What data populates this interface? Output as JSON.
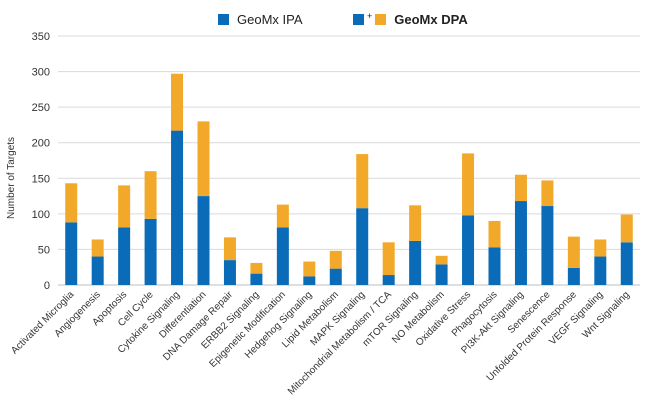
{
  "colors": {
    "ipa": "#0a6cb8",
    "dpa": "#f2a92a",
    "grid": "#d9d9d9",
    "text": "#333333"
  },
  "legend": {
    "ipa_label": "GeoMx IPA",
    "plus": "+",
    "dpa_label": "GeoMx DPA"
  },
  "chart_data": {
    "type": "bar",
    "stacked": true,
    "ylabel": "Number of Targets",
    "xlabel": "",
    "ylim": [
      0,
      350
    ],
    "yticks": [
      0,
      50,
      100,
      150,
      200,
      250,
      300,
      350
    ],
    "grid": true,
    "legend_position": "top-center",
    "categories": [
      "Activated Microglia",
      "Angiogenesis",
      "Apoptosis",
      "Cell Cycle",
      "Cytokine Signaling",
      "Differentiation",
      "DNA Damage Repair",
      "ERBB2 Signaling",
      "Epigenetic Modification",
      "Hedgehog Signaling",
      "Lipid Metabolism",
      "MAPK Signaling",
      "Mitochondrial Metabolism / TCA",
      "mTOR Signaling",
      "NO Metabolism",
      "Oxidative Stress",
      "Phagocytosis",
      "PI3K-Akt Signaling",
      "Senescence",
      "Unfolded Protein Response",
      "VEGF Signaling",
      "Wnt Signaling"
    ],
    "series": [
      {
        "name": "GeoMx IPA",
        "values": [
          88,
          40,
          81,
          93,
          217,
          125,
          35,
          16,
          81,
          12,
          23,
          108,
          14,
          62,
          29,
          98,
          53,
          118,
          111,
          24,
          40,
          60
        ]
      },
      {
        "name": "GeoMx DPA",
        "values": [
          55,
          24,
          59,
          67,
          80,
          105,
          32,
          15,
          32,
          21,
          25,
          76,
          46,
          50,
          12,
          87,
          37,
          37,
          36,
          44,
          24,
          39
        ]
      }
    ]
  }
}
